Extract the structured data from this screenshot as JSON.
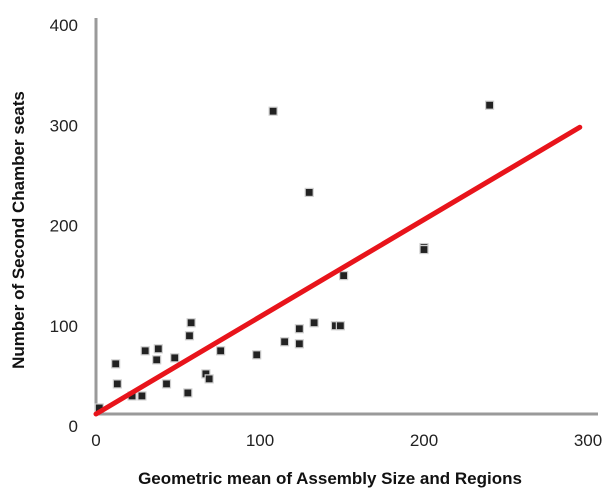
{
  "chart_data": {
    "type": "scatter",
    "title": "",
    "xlabel": "Geometric mean of Assembly Size and Regions",
    "ylabel": "Number of Second Chamber seats",
    "xlim": [
      0,
      300
    ],
    "ylim": [
      0,
      400
    ],
    "x_ticks": [
      "0",
      "100",
      "200",
      "300"
    ],
    "y_ticks": [
      "0",
      "100",
      "200",
      "300",
      "400"
    ],
    "grid": false,
    "legend": "none",
    "colors": {
      "points": "#222222",
      "fit_line": "#e8141b",
      "axis": "#999999"
    },
    "points": [
      {
        "x": 2,
        "y": 18
      },
      {
        "x": 12,
        "y": 62
      },
      {
        "x": 13,
        "y": 42
      },
      {
        "x": 22,
        "y": 30
      },
      {
        "x": 28,
        "y": 30
      },
      {
        "x": 30,
        "y": 75
      },
      {
        "x": 37,
        "y": 66
      },
      {
        "x": 38,
        "y": 77
      },
      {
        "x": 43,
        "y": 42
      },
      {
        "x": 48,
        "y": 68
      },
      {
        "x": 56,
        "y": 33
      },
      {
        "x": 57,
        "y": 90
      },
      {
        "x": 58,
        "y": 103
      },
      {
        "x": 67,
        "y": 52
      },
      {
        "x": 69,
        "y": 47
      },
      {
        "x": 76,
        "y": 75
      },
      {
        "x": 98,
        "y": 71
      },
      {
        "x": 108,
        "y": 314
      },
      {
        "x": 115,
        "y": 84
      },
      {
        "x": 124,
        "y": 82
      },
      {
        "x": 124,
        "y": 97
      },
      {
        "x": 130,
        "y": 233
      },
      {
        "x": 133,
        "y": 103
      },
      {
        "x": 146,
        "y": 100
      },
      {
        "x": 149,
        "y": 100
      },
      {
        "x": 151,
        "y": 150
      },
      {
        "x": 200,
        "y": 178
      },
      {
        "x": 200,
        "y": 176
      },
      {
        "x": 240,
        "y": 320
      }
    ],
    "fit_line": {
      "x": [
        0,
        295
      ],
      "y": [
        12,
        298
      ]
    }
  }
}
